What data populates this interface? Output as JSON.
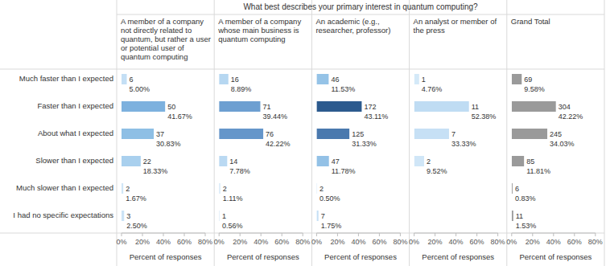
{
  "chart_data": {
    "type": "bar",
    "orientation": "horizontal",
    "data_labels": true,
    "grid": false,
    "title": "What best describes your primary interest in quantum computing?",
    "x_label": "Percent of responses",
    "categories": [
      "Much faster than I expected",
      "Faster than I expected",
      "About what I expected",
      "Slower than I expected",
      "Much slower than I expected",
      "I had no specific expectations"
    ],
    "xlim": [
      0,
      80
    ],
    "xticks": [
      {
        "value": 0,
        "label": "0%"
      },
      {
        "value": 20,
        "label": "20%"
      },
      {
        "value": 40,
        "label": "40%"
      },
      {
        "value": 60,
        "label": "60%"
      },
      {
        "value": 80,
        "label": "80%"
      }
    ],
    "series": [
      {
        "name": "A member of a company not directly related to quantum, but rather a user or potential user of quantum computing",
        "values": [
          5.0,
          41.67,
          30.83,
          18.33,
          1.67,
          2.5
        ],
        "value_labels": [
          "5.00%",
          "41.67%",
          "30.83%",
          "18.33%",
          "1.67%",
          "2.50%"
        ],
        "counts": [
          6,
          50,
          37,
          22,
          2,
          3
        ],
        "colors": [
          "#c4dff5",
          "#7db1de",
          "#8ebfe5",
          "#a9d0ee",
          "#d0e6f7",
          "#cbe3f6"
        ]
      },
      {
        "name": "A member of a company whose main business is quantum computing",
        "values": [
          8.89,
          39.44,
          42.22,
          7.78,
          1.11,
          0.56
        ],
        "value_labels": [
          "8.89%",
          "39.44%",
          "42.22%",
          "7.78%",
          "1.11%",
          "0.56%"
        ],
        "counts": [
          16,
          71,
          76,
          14,
          2,
          1
        ],
        "colors": [
          "#b6d7f1",
          "#6d9fd1",
          "#6596ca",
          "#bad9f2",
          "#d0e6f7",
          "#d4e9f8"
        ]
      },
      {
        "name": "An academic (e.g., researcher, professor)",
        "values": [
          11.53,
          43.11,
          31.33,
          11.78,
          0.5,
          1.75
        ],
        "value_labels": [
          "11.53%",
          "43.11%",
          "31.33%",
          "11.78%",
          "0.50%",
          "1.75%"
        ],
        "counts": [
          46,
          172,
          125,
          47,
          2,
          7
        ],
        "colors": [
          "#95c3e7",
          "#2c5a8e",
          "#4a79ae",
          "#93c1e6",
          "#d0e6f7",
          "#c5dff5"
        ]
      },
      {
        "name": "An analyst or member of the press",
        "values": [
          4.76,
          52.38,
          33.33,
          9.52,
          null,
          null
        ],
        "value_labels": [
          "4.76%",
          "52.38%",
          "33.33%",
          "9.52%",
          null,
          null
        ],
        "counts": [
          1,
          11,
          7,
          2,
          null,
          null
        ],
        "colors": [
          "#d4e9f8",
          "#bfdcf3",
          "#c6e0f5",
          "#d0e6f7",
          null,
          null
        ]
      },
      {
        "name": "Grand Total",
        "values": [
          9.58,
          42.22,
          34.03,
          11.81,
          0.83,
          1.53
        ],
        "value_labels": [
          "9.58%",
          "42.22%",
          "34.03%",
          "11.81%",
          "0.83%",
          "1.53%"
        ],
        "counts": [
          69,
          304,
          245,
          85,
          6,
          11
        ],
        "colors": [
          "#9a9a9a",
          "#9a9a9a",
          "#9a9a9a",
          "#9a9a9a",
          "#9a9a9a",
          "#9a9a9a"
        ]
      }
    ]
  }
}
